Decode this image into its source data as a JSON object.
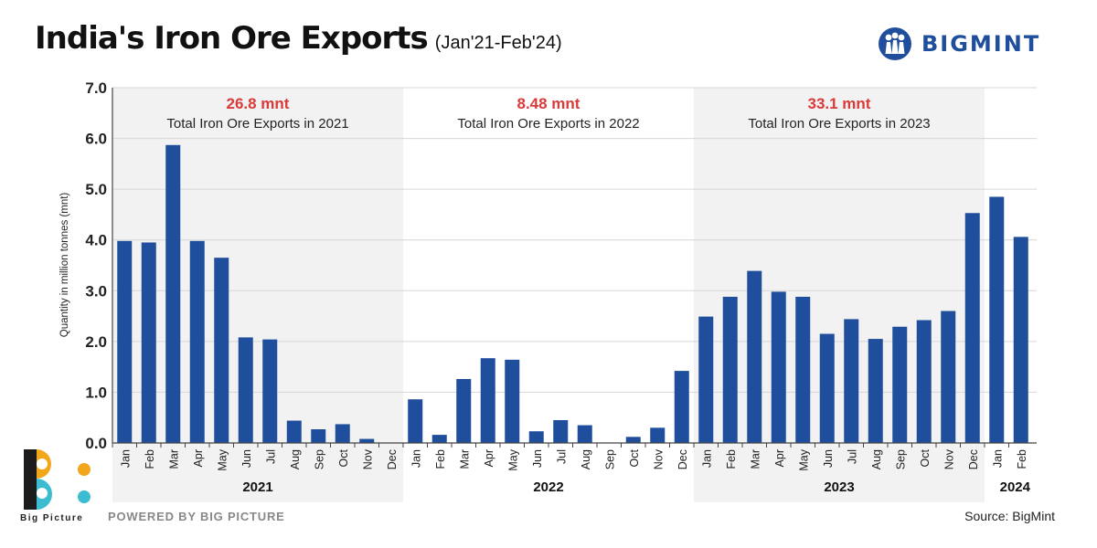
{
  "header": {
    "title": "India's Iron Ore Exports",
    "subtitle": "(Jan'21-Feb'24)",
    "brand": "BIGMINT"
  },
  "footer": {
    "logo_text": "Big Picture",
    "powered_by": "POWERED BY BIG PICTURE",
    "source": "Source: BigMint"
  },
  "colors": {
    "bar": "#1f4e9c",
    "shade": "#f1f2f1",
    "highlight": "#d93a3a"
  },
  "chart_data": {
    "type": "bar",
    "ylabel": "Quantity in million tonnes (mnt)",
    "ylim": [
      0,
      7
    ],
    "yticks": [
      "0.0",
      "1.0",
      "2.0",
      "3.0",
      "4.0",
      "5.0",
      "6.0",
      "7.0"
    ],
    "grid": true,
    "groups": [
      {
        "year": "2021",
        "shaded": true,
        "total": "26.8 mnt",
        "caption": "Total Iron Ore Exports in 2021",
        "categories": [
          "Jan",
          "Feb",
          "Mar",
          "Apr",
          "May",
          "Jun",
          "Jul",
          "Aug",
          "Sep",
          "Oct",
          "Nov",
          "Dec"
        ],
        "values": [
          3.98,
          3.95,
          5.87,
          3.98,
          3.65,
          2.08,
          2.04,
          0.44,
          0.27,
          0.37,
          0.08,
          0.0
        ]
      },
      {
        "year": "2022",
        "shaded": false,
        "total": "8.48 mnt",
        "caption": "Total Iron Ore Exports in 2022",
        "categories": [
          "Jan",
          "Feb",
          "Mar",
          "Apr",
          "May",
          "Jun",
          "Jul",
          "Aug",
          "Sep",
          "Oct",
          "Nov",
          "Dec"
        ],
        "values": [
          0.86,
          0.16,
          1.26,
          1.67,
          1.64,
          0.23,
          0.45,
          0.35,
          0.0,
          0.12,
          0.3,
          1.42
        ]
      },
      {
        "year": "2023",
        "shaded": true,
        "total": "33.1 mnt",
        "caption": "Total Iron Ore Exports in 2023",
        "categories": [
          "Jan",
          "Feb",
          "Mar",
          "Apr",
          "May",
          "Jun",
          "Jul",
          "Aug",
          "Sep",
          "Oct",
          "Nov",
          "Dec"
        ],
        "values": [
          2.49,
          2.88,
          3.39,
          2.98,
          2.88,
          2.15,
          2.44,
          2.05,
          2.29,
          2.42,
          2.6,
          4.53
        ]
      },
      {
        "year": "2024",
        "shaded": false,
        "total": "",
        "caption": "",
        "categories": [
          "Jan",
          "Feb"
        ],
        "values": [
          4.85,
          4.06
        ]
      }
    ]
  }
}
